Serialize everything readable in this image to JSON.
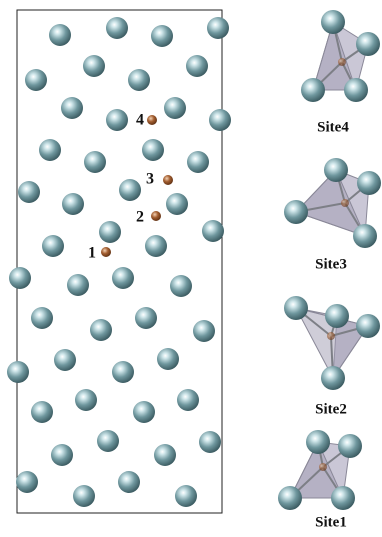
{
  "markers": [
    {
      "label": "1"
    },
    {
      "label": "2"
    },
    {
      "label": "3"
    },
    {
      "label": "4"
    }
  ],
  "sites": [
    {
      "label": "Site4"
    },
    {
      "label": "Site3"
    },
    {
      "label": "Site2"
    },
    {
      "label": "Site1"
    }
  ]
}
